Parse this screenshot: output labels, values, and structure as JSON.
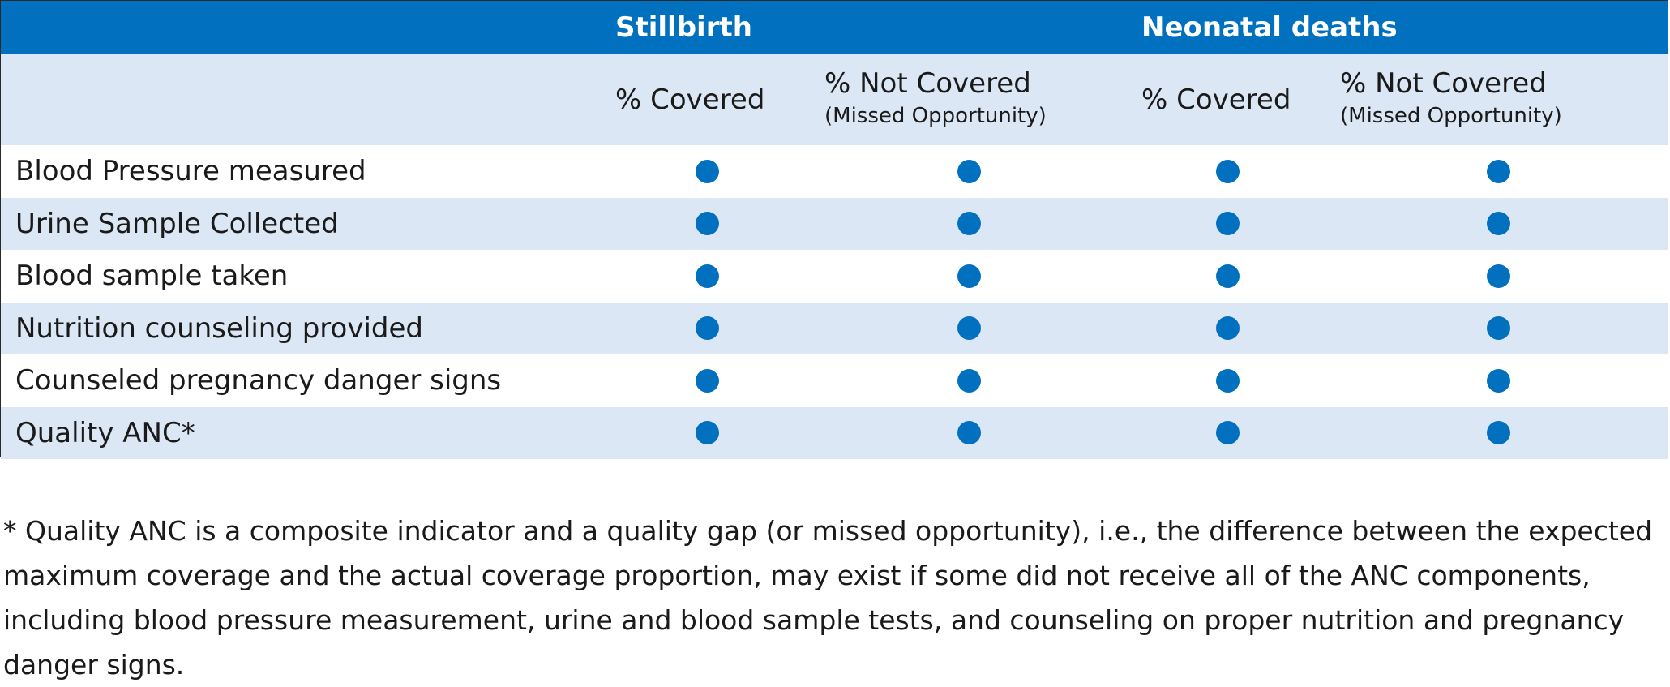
{
  "table": {
    "groups": [
      "Stillbirth",
      "Neonatal deaths"
    ],
    "columns": [
      {
        "main": "% Covered",
        "sub": ""
      },
      {
        "main": "% Not Covered",
        "sub": "(Missed Opportunity)"
      },
      {
        "main": "% Covered",
        "sub": ""
      },
      {
        "main": "% Not Covered",
        "sub": "(Missed Opportunity)"
      }
    ],
    "rows": [
      {
        "label": "Blood Pressure measured"
      },
      {
        "label": "Urine Sample Collected"
      },
      {
        "label": "Blood sample taken"
      },
      {
        "label": "Nutrition counseling provided"
      },
      {
        "label": "Counseled pregnancy danger signs"
      },
      {
        "label": "Quality ANC*"
      }
    ],
    "marker_color": "#0070bf",
    "header_color": "#0070bf",
    "band_color": "#dce7f5"
  },
  "footnote": "* Quality ANC is a composite indicator and a quality gap (or missed opportunity), i.e., the difference between the expected maximum coverage and the actual coverage proportion, may exist if some did not receive all of the ANC components, including blood pressure measurement, urine and blood sample tests, and counseling on proper nutrition and pregnancy danger signs."
}
